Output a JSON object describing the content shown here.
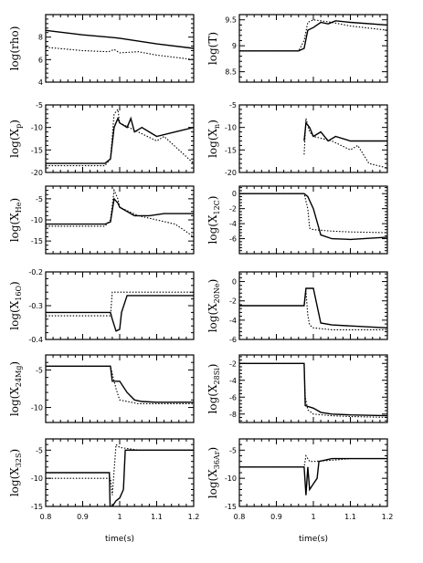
{
  "chart_data": {
    "type": "line",
    "grid": false,
    "xlim": [
      0.8,
      1.2
    ],
    "xticks": [
      0.8,
      0.9,
      1.0,
      1.1,
      1.2
    ],
    "xtick_labels": [
      "0.8",
      "0.9",
      "1",
      "1.1",
      "1.2"
    ],
    "xlabel": "time(s)",
    "panels": [
      {
        "ylabel_main": "log(rho)",
        "ylabel_sub": "",
        "ylim": [
          4,
          10
        ],
        "yticks": [
          4,
          6,
          8
        ],
        "ytick_labels": [
          "4",
          "6",
          "8"
        ],
        "series": [
          {
            "style": "solid",
            "x": [
              0.8,
              0.9,
              0.97,
              1.0,
              1.1,
              1.2
            ],
            "y": [
              8.6,
              8.2,
              8.0,
              7.9,
              7.4,
              7.0
            ]
          },
          {
            "style": "dotted",
            "x": [
              0.8,
              0.9,
              0.97,
              0.985,
              1.0,
              1.05,
              1.1,
              1.2
            ],
            "y": [
              7.1,
              6.8,
              6.7,
              6.9,
              6.6,
              6.7,
              6.4,
              6.0
            ]
          }
        ]
      },
      {
        "ylabel_main": "log(T)",
        "ylabel_sub": "",
        "ylim": [
          8.3,
          9.6
        ],
        "yticks": [
          8.5,
          9,
          9.5
        ],
        "ytick_labels": [
          "8.5",
          "9",
          "9.5"
        ],
        "series": [
          {
            "style": "solid",
            "x": [
              0.8,
              0.96,
              0.975,
              0.985,
              1.0,
              1.02,
              1.04,
              1.06,
              1.1,
              1.2
            ],
            "y": [
              8.9,
              8.9,
              8.95,
              9.3,
              9.35,
              9.45,
              9.42,
              9.48,
              9.45,
              9.4
            ]
          },
          {
            "style": "dotted",
            "x": [
              0.8,
              0.96,
              0.975,
              0.985,
              1.0,
              1.05,
              1.1,
              1.2
            ],
            "y": [
              8.9,
              8.9,
              9.1,
              9.45,
              9.5,
              9.45,
              9.38,
              9.3
            ]
          }
        ]
      },
      {
        "ylabel_main": "log(X",
        "ylabel_sub": "p",
        "ylim": [
          -20,
          -5
        ],
        "yticks": [
          -20,
          -15,
          -10,
          -5
        ],
        "ytick_labels": [
          "-20",
          "-15",
          "-10",
          "-5"
        ],
        "series": [
          {
            "style": "solid",
            "x": [
              0.8,
              0.96,
              0.975,
              0.985,
              0.995,
              1.0,
              1.02,
              1.03,
              1.04,
              1.06,
              1.08,
              1.1,
              1.15,
              1.2
            ],
            "y": [
              -18,
              -18,
              -17,
              -10,
              -8,
              -9,
              -10,
              -8,
              -11,
              -10,
              -11,
              -12,
              -11,
              -10
            ]
          },
          {
            "style": "dotted",
            "x": [
              0.8,
              0.96,
              0.975,
              0.985,
              0.995,
              1.0,
              1.05,
              1.1,
              1.12,
              1.2
            ],
            "y": [
              -18.5,
              -18.5,
              -17,
              -7,
              -6,
              -9,
              -11,
              -13,
              -12,
              -18
            ]
          }
        ]
      },
      {
        "ylabel_main": "log(X",
        "ylabel_sub": "n",
        "ylim": [
          -20,
          -5
        ],
        "yticks": [
          -20,
          -15,
          -10,
          -5
        ],
        "ytick_labels": [
          "-20",
          "-15",
          "-10",
          "-5"
        ],
        "series": [
          {
            "style": "solid",
            "x": [
              0.975,
              0.98,
              0.99,
              1.0,
              1.02,
              1.04,
              1.06,
              1.1,
              1.15,
              1.2
            ],
            "y": [
              -13,
              -9,
              -10,
              -12,
              -11,
              -13,
              -12,
              -13,
              -13,
              -13
            ]
          },
          {
            "style": "dotted",
            "x": [
              0.975,
              0.98,
              0.99,
              1.0,
              1.05,
              1.1,
              1.12,
              1.15,
              1.2
            ],
            "y": [
              -16,
              -8,
              -11,
              -12,
              -13,
              -15,
              -14,
              -18,
              -19
            ]
          }
        ]
      },
      {
        "ylabel_main": "log(X",
        "ylabel_sub": "He",
        "ylim": [
          -18,
          -2
        ],
        "yticks": [
          -15,
          -10,
          -5
        ],
        "ytick_labels": [
          "-15",
          "-10",
          "-5"
        ],
        "series": [
          {
            "style": "solid",
            "x": [
              0.8,
              0.96,
              0.975,
              0.985,
              0.995,
              1.0,
              1.02,
              1.04,
              1.08,
              1.12,
              1.2
            ],
            "y": [
              -11,
              -11,
              -10.5,
              -5,
              -6,
              -7,
              -8,
              -9,
              -9,
              -8.5,
              -8.5
            ]
          },
          {
            "style": "dotted",
            "x": [
              0.8,
              0.96,
              0.975,
              0.985,
              0.995,
              1.0,
              1.05,
              1.1,
              1.15,
              1.2
            ],
            "y": [
              -11.5,
              -11.5,
              -10,
              -3,
              -5,
              -7,
              -9,
              -10,
              -11,
              -14
            ]
          }
        ]
      },
      {
        "ylabel_main": "log(X",
        "ylabel_sub": "12C",
        "ylim": [
          -8,
          1
        ],
        "yticks": [
          -6,
          -4,
          -2,
          0
        ],
        "ytick_labels": [
          "-6",
          "-4",
          "-2",
          "0"
        ],
        "series": [
          {
            "style": "solid",
            "x": [
              0.8,
              0.975,
              0.985,
              1.0,
              1.02,
              1.05,
              1.1,
              1.2
            ],
            "y": [
              0,
              0,
              -0.4,
              -2,
              -5.5,
              -6,
              -6.1,
              -5.8
            ]
          },
          {
            "style": "dotted",
            "x": [
              0.8,
              0.975,
              0.985,
              0.99,
              1.0,
              1.05,
              1.1,
              1.2
            ],
            "y": [
              0,
              0,
              -2,
              -4.6,
              -4.8,
              -5,
              -5.1,
              -5.2
            ]
          }
        ]
      },
      {
        "ylabel_main": "log(X",
        "ylabel_sub": "16O",
        "ylim": [
          -0.4,
          -0.2
        ],
        "yticks": [
          -0.4,
          -0.3,
          -0.2
        ],
        "ytick_labels": [
          "-0.4",
          "-0.3",
          "-0.2"
        ],
        "series": [
          {
            "style": "solid",
            "x": [
              0.8,
              0.975,
              0.98,
              0.99,
              1.0,
              1.005,
              1.02,
              1.05,
              1.1,
              1.2
            ],
            "y": [
              -0.32,
              -0.32,
              -0.34,
              -0.375,
              -0.37,
              -0.32,
              -0.27,
              -0.27,
              -0.27,
              -0.27
            ]
          },
          {
            "style": "dotted",
            "x": [
              0.8,
              0.975,
              0.98,
              0.985,
              1.0,
              1.2
            ],
            "y": [
              -0.33,
              -0.33,
              -0.26,
              -0.26,
              -0.26,
              -0.26
            ]
          }
        ]
      },
      {
        "ylabel_main": "log(X",
        "ylabel_sub": "20Ne",
        "ylim": [
          -6,
          1
        ],
        "yticks": [
          -6,
          -4,
          -2,
          0
        ],
        "ytick_labels": [
          "-6",
          "-4",
          "-2",
          "0"
        ],
        "series": [
          {
            "style": "solid",
            "x": [
              0.8,
              0.975,
              0.98,
              1.0,
              1.02,
              1.05,
              1.1,
              1.2
            ],
            "y": [
              -2.5,
              -2.5,
              -0.7,
              -0.7,
              -4.3,
              -4.5,
              -4.6,
              -4.8
            ]
          },
          {
            "style": "dotted",
            "x": [
              0.8,
              0.975,
              0.98,
              0.985,
              0.99,
              1.0,
              1.05,
              1.1,
              1.2
            ],
            "y": [
              -2.5,
              -2.5,
              -1.0,
              -3.5,
              -4.5,
              -4.8,
              -5.0,
              -5.0,
              -5.0
            ]
          }
        ]
      },
      {
        "ylabel_main": "log(X",
        "ylabel_sub": "24Mg",
        "ylim": [
          -12,
          -3
        ],
        "yticks": [
          -10,
          -5
        ],
        "ytick_labels": [
          "-10",
          "-5"
        ],
        "series": [
          {
            "style": "solid",
            "x": [
              0.8,
              0.975,
              0.98,
              1.0,
              1.02,
              1.04,
              1.06,
              1.1,
              1.2
            ],
            "y": [
              -4.5,
              -4.5,
              -6.5,
              -6.5,
              -8.0,
              -9.0,
              -9.2,
              -9.3,
              -9.3
            ]
          },
          {
            "style": "dotted",
            "x": [
              0.8,
              0.975,
              0.98,
              0.99,
              1.0,
              1.05,
              1.1,
              1.2
            ],
            "y": [
              -4.5,
              -4.5,
              -5.5,
              -7.5,
              -9.0,
              -9.5,
              -9.5,
              -9.5
            ]
          }
        ]
      },
      {
        "ylabel_main": "log(X",
        "ylabel_sub": "28Si",
        "ylim": [
          -9,
          -1
        ],
        "yticks": [
          -8,
          -6,
          -4,
          -2
        ],
        "ytick_labels": [
          "-8",
          "-6",
          "-4",
          "-2"
        ],
        "series": [
          {
            "style": "solid",
            "x": [
              0.8,
              0.975,
              0.978,
              1.0,
              1.02,
              1.05,
              1.1,
              1.2
            ],
            "y": [
              -2.0,
              -2.0,
              -7.0,
              -7.3,
              -7.8,
              -8.0,
              -8.1,
              -8.2
            ]
          },
          {
            "style": "dotted",
            "x": [
              0.8,
              0.975,
              0.978,
              0.985,
              1.0,
              1.05,
              1.1,
              1.2
            ],
            "y": [
              -2.0,
              -2.0,
              -6.0,
              -7.5,
              -8.0,
              -8.2,
              -8.3,
              -8.4
            ]
          }
        ]
      },
      {
        "ylabel_main": "log(X",
        "ylabel_sub": "32S",
        "ylim": [
          -15,
          -3
        ],
        "yticks": [
          -15,
          -10,
          -5
        ],
        "ytick_labels": [
          "-15",
          "-10",
          "-5"
        ],
        "series": [
          {
            "style": "solid",
            "x": [
              0.8,
              0.972,
              0.974,
              0.98,
              0.99,
              1.0,
              1.01,
              1.015,
              1.05,
              1.1,
              1.2
            ],
            "y": [
              -9,
              -9,
              -15,
              -15,
              -14,
              -13.5,
              -12,
              -5,
              -5,
              -5,
              -5
            ]
          },
          {
            "style": "dotted",
            "x": [
              0.8,
              0.975,
              0.98,
              0.99,
              1.0,
              1.05,
              1.1,
              1.2
            ],
            "y": [
              -10,
              -10,
              -13,
              -4,
              -4.5,
              -5,
              -5,
              -5
            ]
          }
        ]
      },
      {
        "ylabel_main": "log(X",
        "ylabel_sub": "36Ar",
        "ylim": [
          -15,
          -3
        ],
        "yticks": [
          -15,
          -10,
          -5
        ],
        "ytick_labels": [
          "-15",
          "-10",
          "-5"
        ],
        "series": [
          {
            "style": "solid",
            "x": [
              0.8,
              0.975,
              0.98,
              0.985,
              0.99,
              1.0,
              1.01,
              1.015,
              1.05,
              1.1,
              1.2
            ],
            "y": [
              -8,
              -8,
              -13,
              -8,
              -12,
              -11,
              -10,
              -7,
              -6.5,
              -6.5,
              -6.5
            ]
          },
          {
            "style": "dotted",
            "x": [
              0.8,
              0.975,
              0.98,
              0.99,
              1.0,
              1.05,
              1.1,
              1.2
            ],
            "y": [
              -8,
              -8,
              -6,
              -7,
              -7,
              -6.8,
              -6.5,
              -6.5
            ]
          }
        ]
      }
    ]
  }
}
